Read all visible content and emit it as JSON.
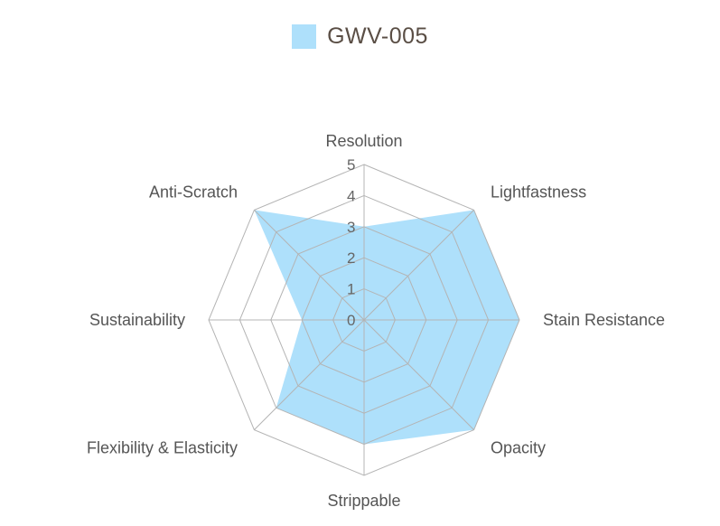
{
  "chart_data": {
    "type": "radar",
    "axes": [
      "Resolution",
      "Lightfastness",
      "Stain Resistance",
      "Opacity",
      "Strippable",
      "Flexibility & Elasticity",
      "Sustainability",
      "Anti-Scratch"
    ],
    "series": [
      {
        "name": "GWV-005",
        "values": [
          3,
          5,
          5,
          5,
          4,
          4,
          2,
          5
        ],
        "color": "#aee0fb"
      }
    ],
    "rmin": 0,
    "rmax": 5,
    "ticks": [
      "0",
      "1",
      "2",
      "3",
      "4",
      "5"
    ],
    "grid": true,
    "legend_position": "top"
  },
  "legend": {
    "label": "GWV-005",
    "color": "#aee0fb"
  }
}
